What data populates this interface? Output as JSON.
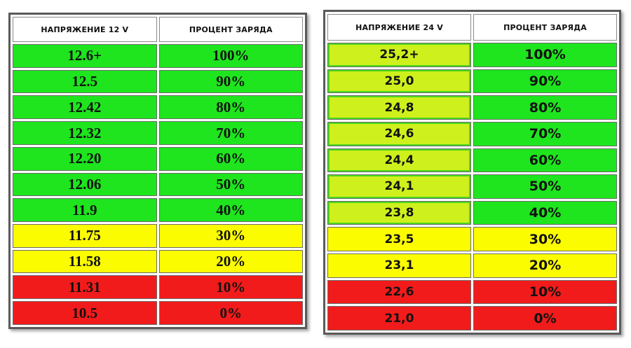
{
  "colors": {
    "green": "#1ee51e",
    "yellow": "#fcfc00",
    "red": "#f21b1b",
    "lime": "#cef01c"
  },
  "table_12v": {
    "headers": [
      "НАПРЯЖЕНИЕ 12 V",
      "ПРОЦЕНТ ЗАРЯДА"
    ],
    "rows": [
      {
        "voltage": "12.6+",
        "percent": "100%",
        "color": "green"
      },
      {
        "voltage": "12.5",
        "percent": "90%",
        "color": "green"
      },
      {
        "voltage": "12.42",
        "percent": "80%",
        "color": "green"
      },
      {
        "voltage": "12.32",
        "percent": "70%",
        "color": "green"
      },
      {
        "voltage": "12.20",
        "percent": "60%",
        "color": "green"
      },
      {
        "voltage": "12.06",
        "percent": "50%",
        "color": "green"
      },
      {
        "voltage": "11.9",
        "percent": "40%",
        "color": "green"
      },
      {
        "voltage": "11.75",
        "percent": "30%",
        "color": "yellow"
      },
      {
        "voltage": "11.58",
        "percent": "20%",
        "color": "yellow"
      },
      {
        "voltage": "11.31",
        "percent": "10%",
        "color": "red"
      },
      {
        "voltage": "10.5",
        "percent": "0%",
        "color": "red"
      }
    ]
  },
  "table_24v": {
    "headers": [
      "НАПРЯЖЕНИЕ 24 V",
      "ПРОЦЕНТ ЗАРЯДА"
    ],
    "rows": [
      {
        "voltage": "25,2+",
        "percent": "100%",
        "voltage_color": "lime",
        "percent_color": "green"
      },
      {
        "voltage": "25,0",
        "percent": "90%",
        "voltage_color": "lime",
        "percent_color": "green"
      },
      {
        "voltage": "24,8",
        "percent": "80%",
        "voltage_color": "lime",
        "percent_color": "green"
      },
      {
        "voltage": "24,6",
        "percent": "70%",
        "voltage_color": "lime",
        "percent_color": "green"
      },
      {
        "voltage": "24,4",
        "percent": "60%",
        "voltage_color": "lime",
        "percent_color": "green"
      },
      {
        "voltage": "24,1",
        "percent": "50%",
        "voltage_color": "lime",
        "percent_color": "green"
      },
      {
        "voltage": "23,8",
        "percent": "40%",
        "voltage_color": "lime",
        "percent_color": "green"
      },
      {
        "voltage": "23,5",
        "percent": "30%",
        "voltage_color": "yellow",
        "percent_color": "yellow"
      },
      {
        "voltage": "23,1",
        "percent": "20%",
        "voltage_color": "yellow",
        "percent_color": "yellow"
      },
      {
        "voltage": "22,6",
        "percent": "10%",
        "voltage_color": "red",
        "percent_color": "red"
      },
      {
        "voltage": "21,0",
        "percent": "0%",
        "voltage_color": "red",
        "percent_color": "red"
      }
    ]
  }
}
